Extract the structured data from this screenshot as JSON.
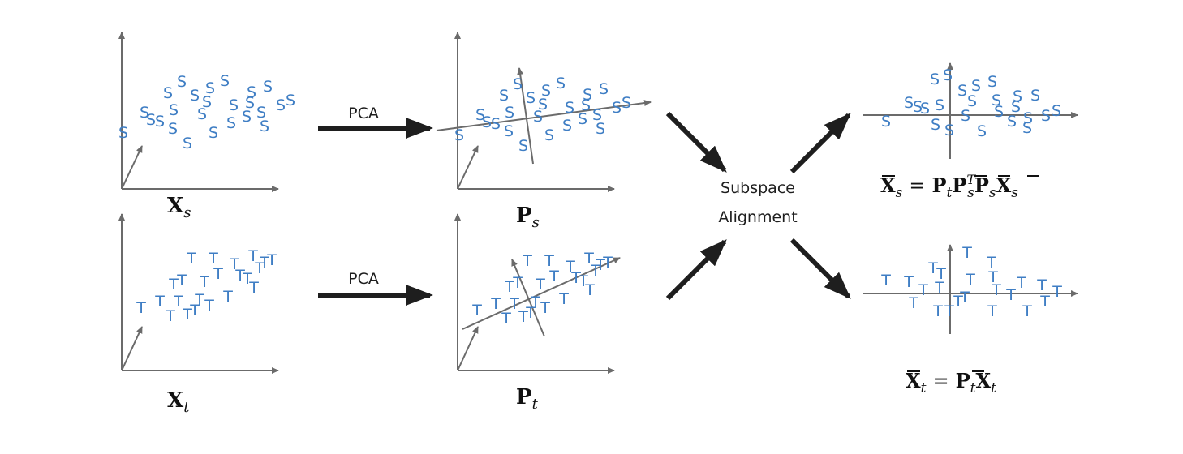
{
  "labels": {
    "pca_top": "PCA",
    "pca_bottom": "PCA",
    "center_line1": "Subspace",
    "center_line2": "Alignment"
  },
  "math": {
    "xs": {
      "base": "X",
      "sub": "s"
    },
    "xt": {
      "base": "X",
      "sub": "t"
    },
    "ps": {
      "base": "P",
      "sub": "s"
    },
    "pt": {
      "base": "P",
      "sub": "t"
    },
    "xs_bar_eq": {
      "lhs": {
        "base": "X",
        "sub": "s"
      },
      "eq": "=",
      "rhs": [
        {
          "base": "P",
          "sub": "t"
        },
        {
          "base": "P",
          "sub": "s",
          "sup": "T"
        },
        {
          "base": "P",
          "sub": "s"
        },
        {
          "base": "X",
          "sub": "s",
          "plain": true
        }
      ]
    },
    "xt_bar_eq": {
      "lhs": {
        "base": "X",
        "sub": "t"
      },
      "eq": "=",
      "rhs": [
        {
          "base": "P",
          "sub": "t"
        },
        {
          "base": "X",
          "sub": "t",
          "plain": true
        }
      ]
    }
  },
  "point_letters": {
    "source": "S",
    "target": "T"
  },
  "colors": {
    "points": "#3f7ec4",
    "axes": "#6b6b6b",
    "arrows": "#1e1e1e"
  }
}
